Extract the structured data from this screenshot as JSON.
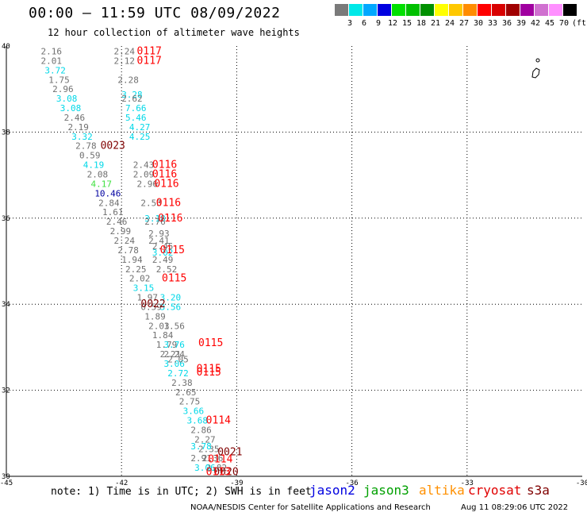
{
  "header": {
    "title": "00:00 – 11:59 UTC 08/09/2022",
    "subtitle": "12 hour collection of altimeter wave heights"
  },
  "legend": {
    "unit": "(ft)",
    "levels": [
      {
        "label": "3",
        "color": "#7a7a7a"
      },
      {
        "label": "6",
        "color": "#00e8e8"
      },
      {
        "label": "9",
        "color": "#00a8ff"
      },
      {
        "label": "12",
        "color": "#0000e0"
      },
      {
        "label": "15",
        "color": "#00e000"
      },
      {
        "label": "18",
        "color": "#00c000"
      },
      {
        "label": "21",
        "color": "#009000"
      },
      {
        "label": "24",
        "color": "#ffff00"
      },
      {
        "label": "27",
        "color": "#ffc800"
      },
      {
        "label": "30",
        "color": "#ff8c00"
      },
      {
        "label": "33",
        "color": "#ff0000"
      },
      {
        "label": "36",
        "color": "#d80000"
      },
      {
        "label": "39",
        "color": "#a00000"
      },
      {
        "label": "42",
        "color": "#a000a0"
      },
      {
        "label": "45",
        "color": "#d070d0"
      },
      {
        "label": "70",
        "color": "#ff90ff"
      },
      {
        "label": "",
        "color": "#000000"
      }
    ]
  },
  "chart_data": {
    "type": "scatter",
    "xlim": [
      -45,
      -30
    ],
    "ylim": [
      30,
      40
    ],
    "x_ticks": [
      "-45",
      "-42",
      "-39",
      "-36",
      "-33",
      "-30"
    ],
    "y_ticks": [
      "30",
      "32",
      "34",
      "36",
      "38",
      "40"
    ],
    "grid": true,
    "series_colors": {
      "gray": "#707070",
      "cyan": "#00d8e8",
      "green": "#40e040",
      "navy": "#0000a0",
      "red": "#ff0000",
      "maroon": "#800000"
    },
    "points": [
      {
        "t": "2.16",
        "x": -44.1,
        "y": 39.88,
        "c": "gray"
      },
      {
        "t": "2.01",
        "x": -44.1,
        "y": 39.66,
        "c": "gray"
      },
      {
        "t": "3.72",
        "x": -44.0,
        "y": 39.44,
        "c": "cyan"
      },
      {
        "t": "1.75",
        "x": -43.9,
        "y": 39.22,
        "c": "gray"
      },
      {
        "t": "2.96",
        "x": -43.8,
        "y": 39.0,
        "c": "gray"
      },
      {
        "t": "3.08",
        "x": -43.7,
        "y": 38.78,
        "c": "cyan"
      },
      {
        "t": "3.08",
        "x": -43.6,
        "y": 38.56,
        "c": "cyan"
      },
      {
        "t": "2.46",
        "x": -43.5,
        "y": 38.34,
        "c": "gray"
      },
      {
        "t": "2.19",
        "x": -43.4,
        "y": 38.12,
        "c": "gray"
      },
      {
        "t": "3.32",
        "x": -43.3,
        "y": 37.9,
        "c": "cyan"
      },
      {
        "t": "2.78",
        "x": -43.2,
        "y": 37.68,
        "c": "gray"
      },
      {
        "t": "0.59",
        "x": -43.1,
        "y": 37.46,
        "c": "gray"
      },
      {
        "t": "4.19",
        "x": -43.0,
        "y": 37.24,
        "c": "cyan"
      },
      {
        "t": "2.08",
        "x": -42.9,
        "y": 37.02,
        "c": "gray"
      },
      {
        "t": "4.17",
        "x": -42.8,
        "y": 36.8,
        "c": "green"
      },
      {
        "t": "10.46",
        "x": -42.7,
        "y": 36.58,
        "c": "navy"
      },
      {
        "t": "2.84",
        "x": -42.6,
        "y": 36.36,
        "c": "gray"
      },
      {
        "t": "1.61",
        "x": -42.5,
        "y": 36.14,
        "c": "gray"
      },
      {
        "t": "2.46",
        "x": -42.4,
        "y": 35.92,
        "c": "gray"
      },
      {
        "t": "2.99",
        "x": -42.3,
        "y": 35.7,
        "c": "gray"
      },
      {
        "t": "2.24",
        "x": -42.2,
        "y": 35.48,
        "c": "gray"
      },
      {
        "t": "2.78",
        "x": -42.1,
        "y": 35.26,
        "c": "gray"
      },
      {
        "t": "1.94",
        "x": -42.0,
        "y": 35.04,
        "c": "gray"
      },
      {
        "t": "2.25",
        "x": -41.9,
        "y": 34.82,
        "c": "gray"
      },
      {
        "t": "2.02",
        "x": -41.8,
        "y": 34.6,
        "c": "gray"
      },
      {
        "t": "3.15",
        "x": -41.7,
        "y": 34.38,
        "c": "cyan"
      },
      {
        "t": "1.97",
        "x": -41.6,
        "y": 34.16,
        "c": "gray"
      },
      {
        "t": "0.59",
        "x": -41.5,
        "y": 33.94,
        "c": "gray"
      },
      {
        "t": "1.89",
        "x": -41.4,
        "y": 33.72,
        "c": "gray"
      },
      {
        "t": "2.03",
        "x": -41.3,
        "y": 33.5,
        "c": "gray"
      },
      {
        "t": "1.84",
        "x": -41.2,
        "y": 33.28,
        "c": "gray"
      },
      {
        "t": "1.79",
        "x": -41.1,
        "y": 33.06,
        "c": "gray"
      },
      {
        "t": "2.21",
        "x": -41.0,
        "y": 32.84,
        "c": "gray"
      },
      {
        "t": "3.06",
        "x": -40.9,
        "y": 32.62,
        "c": "cyan"
      },
      {
        "t": "2.72",
        "x": -40.8,
        "y": 32.4,
        "c": "cyan"
      },
      {
        "t": "2.38",
        "x": -40.7,
        "y": 32.18,
        "c": "gray"
      },
      {
        "t": "2.65",
        "x": -40.6,
        "y": 31.96,
        "c": "gray"
      },
      {
        "t": "2.75",
        "x": -40.5,
        "y": 31.74,
        "c": "gray"
      },
      {
        "t": "3.66",
        "x": -40.4,
        "y": 31.52,
        "c": "cyan"
      },
      {
        "t": "3.68",
        "x": -40.3,
        "y": 31.3,
        "c": "cyan"
      },
      {
        "t": "2.86",
        "x": -40.2,
        "y": 31.08,
        "c": "gray"
      },
      {
        "t": "2.27",
        "x": -40.1,
        "y": 30.86,
        "c": "gray"
      },
      {
        "t": "2.35",
        "x": -40.0,
        "y": 30.64,
        "c": "gray"
      },
      {
        "t": "2.36",
        "x": -39.9,
        "y": 30.42,
        "c": "gray"
      },
      {
        "t": "2.82",
        "x": -39.8,
        "y": 30.2,
        "c": "gray"
      },
      {
        "t": "2.24",
        "x": -42.2,
        "y": 39.88,
        "c": "gray"
      },
      {
        "t": "2.12",
        "x": -42.2,
        "y": 39.66,
        "c": "gray"
      },
      {
        "t": "2.28",
        "x": -42.1,
        "y": 39.22,
        "c": "gray"
      },
      {
        "t": "3.28",
        "x": -42.0,
        "y": 38.87,
        "c": "cyan"
      },
      {
        "t": "2.62",
        "x": -42.0,
        "y": 38.78,
        "c": "gray"
      },
      {
        "t": "7.66",
        "x": -41.9,
        "y": 38.56,
        "c": "cyan"
      },
      {
        "t": "5.46",
        "x": -41.9,
        "y": 38.34,
        "c": "cyan"
      },
      {
        "t": "4.27",
        "x": -41.8,
        "y": 38.12,
        "c": "cyan"
      },
      {
        "t": "4.25",
        "x": -41.8,
        "y": 37.9,
        "c": "cyan"
      },
      {
        "t": "2.43",
        "x": -41.7,
        "y": 37.24,
        "c": "gray"
      },
      {
        "t": "2.09",
        "x": -41.7,
        "y": 37.02,
        "c": "gray"
      },
      {
        "t": "2.96",
        "x": -41.6,
        "y": 36.8,
        "c": "gray"
      },
      {
        "t": "2.53",
        "x": -41.5,
        "y": 36.36,
        "c": "gray"
      },
      {
        "t": "3.18",
        "x": -41.4,
        "y": 36.0,
        "c": "cyan"
      },
      {
        "t": "2.76",
        "x": -41.4,
        "y": 35.92,
        "c": "gray"
      },
      {
        "t": "2.93",
        "x": -41.3,
        "y": 35.65,
        "c": "gray"
      },
      {
        "t": "2.41",
        "x": -41.3,
        "y": 35.48,
        "c": "gray"
      },
      {
        "t": "2.45",
        "x": -41.2,
        "y": 35.35,
        "c": "gray"
      },
      {
        "t": "3.02",
        "x": -41.2,
        "y": 35.2,
        "c": "cyan"
      },
      {
        "t": "2.49",
        "x": -41.2,
        "y": 35.04,
        "c": "gray"
      },
      {
        "t": "2.52",
        "x": -41.1,
        "y": 34.82,
        "c": "gray"
      },
      {
        "t": "3.20",
        "x": -41.0,
        "y": 34.16,
        "c": "cyan"
      },
      {
        "t": "3.56",
        "x": -41.0,
        "y": 33.94,
        "c": "cyan"
      },
      {
        "t": "1.56",
        "x": -40.9,
        "y": 33.5,
        "c": "gray"
      },
      {
        "t": "3.76",
        "x": -40.9,
        "y": 33.06,
        "c": "cyan"
      },
      {
        "t": "2.24",
        "x": -40.9,
        "y": 32.84,
        "c": "gray"
      },
      {
        "t": "2.05",
        "x": -40.8,
        "y": 32.72,
        "c": "gray"
      },
      {
        "t": "3.78",
        "x": -40.2,
        "y": 30.7,
        "c": "cyan"
      },
      {
        "t": "2.91",
        "x": -40.2,
        "y": 30.42,
        "c": "gray"
      },
      {
        "t": "3.06",
        "x": -40.1,
        "y": 30.2,
        "c": "cyan"
      },
      {
        "t": "0117",
        "x": -41.6,
        "y": 39.88,
        "c": "red"
      },
      {
        "t": "0117",
        "x": -41.6,
        "y": 39.66,
        "c": "red"
      },
      {
        "t": "0023",
        "x": -42.55,
        "y": 37.68,
        "c": "maroon"
      },
      {
        "t": "0116",
        "x": -41.2,
        "y": 37.24,
        "c": "red"
      },
      {
        "t": "0116",
        "x": -41.2,
        "y": 37.02,
        "c": "red"
      },
      {
        "t": "0116",
        "x": -41.15,
        "y": 36.8,
        "c": "red"
      },
      {
        "t": "0116",
        "x": -41.1,
        "y": 36.36,
        "c": "red"
      },
      {
        "t": "0116",
        "x": -41.05,
        "y": 36.0,
        "c": "red"
      },
      {
        "t": "0115",
        "x": -41.0,
        "y": 35.26,
        "c": "red"
      },
      {
        "t": "0115",
        "x": -40.95,
        "y": 34.6,
        "c": "red"
      },
      {
        "t": "0022",
        "x": -41.5,
        "y": 34.0,
        "c": "maroon"
      },
      {
        "t": "0115",
        "x": -40.0,
        "y": 33.1,
        "c": "red"
      },
      {
        "t": "0115",
        "x": -40.05,
        "y": 32.5,
        "c": "red"
      },
      {
        "t": "0115",
        "x": -40.05,
        "y": 32.42,
        "c": "red"
      },
      {
        "t": "0114",
        "x": -39.8,
        "y": 31.3,
        "c": "red"
      },
      {
        "t": "0021",
        "x": -39.5,
        "y": 30.56,
        "c": "maroon"
      },
      {
        "t": "0114",
        "x": -39.75,
        "y": 30.4,
        "c": "red"
      },
      {
        "t": "0020",
        "x": -39.6,
        "y": 30.1,
        "c": "maroon"
      },
      {
        "t": "0113",
        "x": -39.8,
        "y": 30.1,
        "c": "red"
      }
    ]
  },
  "note": "note: 1) Time is in UTC; 2) SWH is in feet",
  "missions": [
    {
      "label": "jason2",
      "color": "#0000e0"
    },
    {
      "label": "jason3",
      "color": "#00a000"
    },
    {
      "label": "altika",
      "color": "#ff9000"
    },
    {
      "label": "cryosat",
      "color": "#e00000"
    },
    {
      "label": "s3a",
      "color": "#800000"
    }
  ],
  "footer": {
    "credit": "NOAA/NESDIS Center for Satellite Applications and Research",
    "timestamp": "Aug 11 08:29:06 UTC 2022"
  }
}
